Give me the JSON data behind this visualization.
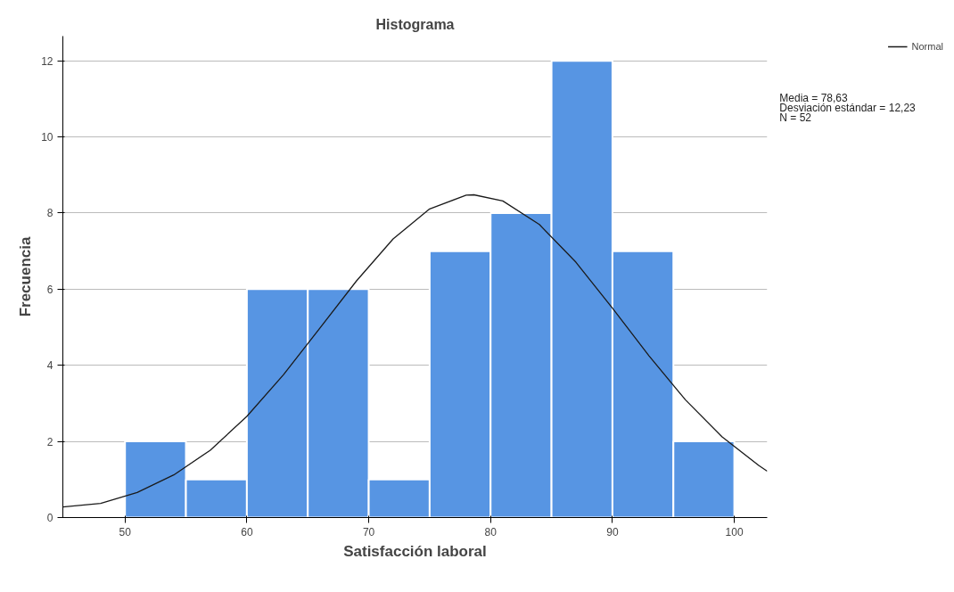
{
  "chart_data": {
    "type": "histogram",
    "title": "Histograma",
    "xlabel": "Satisfacción laboral",
    "ylabel": "Frecuencia",
    "bins": [
      50,
      55,
      60,
      65,
      70,
      75,
      80,
      85,
      90,
      95,
      100
    ],
    "values": [
      2,
      1,
      6,
      6,
      1,
      7,
      8,
      12,
      7,
      2
    ],
    "color": "#5795e3",
    "series": [
      {
        "name": "Normal",
        "type": "line",
        "color": "#1a1a1a",
        "x": [
          44.9,
          48,
          51,
          54,
          57,
          60,
          63,
          66,
          69,
          72,
          75,
          78,
          78.63,
          81,
          84,
          87,
          90,
          93,
          96,
          99,
          102,
          102.7
        ],
        "values": [
          0.28,
          0.37,
          0.66,
          1.12,
          1.77,
          2.66,
          3.75,
          4.98,
          6.22,
          7.32,
          8.11,
          8.47,
          8.48,
          8.32,
          7.7,
          6.71,
          5.5,
          4.25,
          3.09,
          2.12,
          1.37,
          1.22
        ]
      }
    ],
    "annotations": [
      "Media = 78,63",
      "Desviación estándar = 12,23",
      "N = 52"
    ],
    "xlim": [
      44.9,
      102.7
    ],
    "ylim": [
      0,
      12.65
    ],
    "xticks": [
      50,
      60,
      70,
      80,
      90,
      100
    ],
    "yticks": [
      0,
      2,
      4,
      6,
      8,
      10,
      12
    ],
    "grid": "y",
    "legend": "top right",
    "line_style": "solid"
  }
}
